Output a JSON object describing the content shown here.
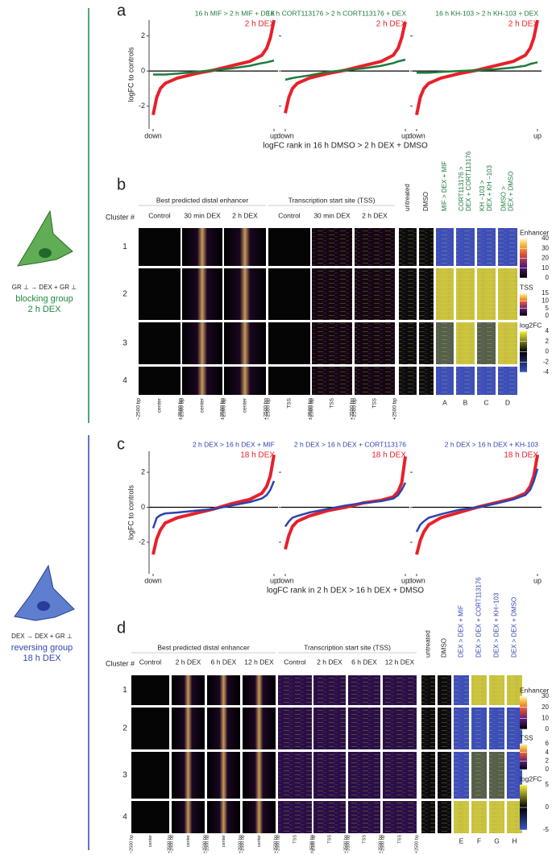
{
  "chart_data": [
    {
      "type": "line",
      "ylabel": "logFC to controls",
      "x": [
        0,
        3,
        6,
        10,
        20,
        35,
        50,
        65,
        80,
        90,
        94,
        97,
        100
      ],
      "xlim": [
        0,
        100
      ],
      "xticks": [
        {
          "value": 0,
          "label": "down"
        },
        {
          "value": 100,
          "label": "up"
        }
      ],
      "ylim": [
        -3.3,
        2.9
      ],
      "yticks": [
        -2,
        0,
        2
      ],
      "series": [
        {
          "name": "2 h DEX",
          "color": "#e8202a",
          "values": [
            -2.5,
            -1.5,
            -1.0,
            -0.7,
            -0.4,
            -0.15,
            0.05,
            0.3,
            0.55,
            0.9,
            1.3,
            1.9,
            2.9
          ]
        },
        {
          "name": "16 h MIF > 2 h MIF + DEX",
          "color": "#1e7a3c",
          "values": [
            -0.2,
            -0.2,
            -0.2,
            -0.2,
            -0.15,
            -0.05,
            0.05,
            0.15,
            0.3,
            0.45,
            0.5,
            0.55,
            0.6
          ]
        }
      ]
    },
    {
      "type": "line",
      "xlabel": "logFC rank in 16 h DMSO > 2 h DEX + DMSO",
      "x": [
        0,
        3,
        6,
        10,
        20,
        35,
        50,
        65,
        80,
        90,
        94,
        97,
        100
      ],
      "xlim": [
        0,
        100
      ],
      "xticks": [
        {
          "value": 0,
          "label": "down"
        },
        {
          "value": 100,
          "label": "up"
        }
      ],
      "ylim": [
        -3.3,
        2.9
      ],
      "yticks": [
        -2,
        0,
        2
      ],
      "series": [
        {
          "name": "2 h DEX",
          "color": "#e8202a",
          "values": [
            -2.4,
            -1.5,
            -1.0,
            -0.7,
            -0.4,
            -0.15,
            0.05,
            0.3,
            0.55,
            0.9,
            1.3,
            1.9,
            2.8
          ]
        },
        {
          "name": "16 h CORT113176 > 2 h CORT113176 + DEX",
          "color": "#1e7a3c",
          "values": [
            -0.5,
            -0.45,
            -0.4,
            -0.35,
            -0.25,
            -0.05,
            0.05,
            0.15,
            0.3,
            0.45,
            0.55,
            0.6,
            0.65
          ]
        }
      ]
    },
    {
      "type": "line",
      "x": [
        0,
        3,
        6,
        10,
        20,
        35,
        50,
        65,
        80,
        90,
        94,
        97,
        100
      ],
      "xlim": [
        0,
        100
      ],
      "xticks": [
        {
          "value": 0,
          "label": "down"
        },
        {
          "value": 100,
          "label": "up"
        }
      ],
      "ylim": [
        -3.3,
        2.9
      ],
      "yticks": [
        -2,
        0,
        2
      ],
      "series": [
        {
          "name": "2 h DEX",
          "color": "#e8202a",
          "values": [
            -2.5,
            -1.5,
            -1.0,
            -0.7,
            -0.4,
            -0.15,
            0.05,
            0.3,
            0.55,
            0.9,
            1.3,
            1.9,
            2.9
          ]
        },
        {
          "name": "16 h KH-103 > 2 h KH-103 + DEX",
          "color": "#1e7a3c",
          "values": [
            -0.1,
            -0.1,
            -0.1,
            -0.1,
            -0.05,
            0,
            0.05,
            0.1,
            0.2,
            0.3,
            0.4,
            0.45,
            0.5
          ]
        }
      ]
    },
    {
      "type": "line",
      "ylabel": "logFC to controls",
      "x": [
        0,
        3,
        6,
        10,
        20,
        35,
        50,
        65,
        80,
        90,
        94,
        97,
        100
      ],
      "xlim": [
        0,
        100
      ],
      "xticks": [
        {
          "value": 0,
          "label": "down"
        },
        {
          "value": 100,
          "label": "up"
        }
      ],
      "ylim": [
        -3.8,
        3.2
      ],
      "yticks": [
        -2,
        0,
        2
      ],
      "series": [
        {
          "name": "18 h DEX",
          "color": "#e8202a",
          "values": [
            -2.7,
            -1.8,
            -1.3,
            -0.9,
            -0.6,
            -0.35,
            -0.1,
            0.2,
            0.45,
            0.8,
            1.2,
            1.8,
            3.0
          ]
        },
        {
          "name": "2 h DEX > 16 h DEX + MIF",
          "color": "#2b44b0",
          "values": [
            -1.2,
            -0.6,
            -0.45,
            -0.35,
            -0.3,
            -0.2,
            -0.1,
            0.1,
            0.3,
            0.5,
            0.7,
            1.0,
            1.5
          ]
        }
      ]
    },
    {
      "type": "line",
      "xlabel": "logFC rank in 2 h DEX > 16 h DEX + DMSO",
      "x": [
        0,
        3,
        6,
        10,
        20,
        35,
        50,
        65,
        80,
        90,
        94,
        97,
        100
      ],
      "xlim": [
        0,
        100
      ],
      "xticks": [
        {
          "value": 0,
          "label": "down"
        },
        {
          "value": 100,
          "label": "up"
        }
      ],
      "ylim": [
        -3.8,
        3.2
      ],
      "yticks": [
        -2,
        0,
        2
      ],
      "series": [
        {
          "name": "18 h DEX",
          "color": "#e8202a",
          "values": [
            -2.4,
            -1.6,
            -1.1,
            -0.8,
            -0.5,
            -0.2,
            0,
            0.25,
            0.4,
            0.6,
            0.9,
            1.4,
            2.9
          ]
        },
        {
          "name": "2 h DEX > 16 h DEX + CORT113176",
          "color": "#2b44b0",
          "values": [
            -1.1,
            -0.8,
            -0.6,
            -0.5,
            -0.3,
            -0.1,
            0.1,
            0.25,
            0.35,
            0.5,
            0.7,
            1.0,
            1.4
          ]
        }
      ]
    },
    {
      "type": "line",
      "x": [
        0,
        3,
        6,
        10,
        20,
        35,
        50,
        65,
        80,
        90,
        94,
        97,
        100
      ],
      "xlim": [
        0,
        100
      ],
      "xticks": [
        {
          "value": 0,
          "label": "down"
        },
        {
          "value": 100,
          "label": "up"
        }
      ],
      "ylim": [
        -3.8,
        3.2
      ],
      "yticks": [
        -2,
        0,
        2
      ],
      "series": [
        {
          "name": "18 h DEX",
          "color": "#e8202a",
          "values": [
            -2.7,
            -1.9,
            -1.4,
            -1.0,
            -0.6,
            -0.3,
            0,
            0.25,
            0.5,
            0.8,
            1.2,
            1.8,
            3.0
          ]
        },
        {
          "name": "2 h DEX > 16 h DEX + KH-103",
          "color": "#2b44b0",
          "values": [
            -1.4,
            -1.0,
            -0.8,
            -0.6,
            -0.4,
            -0.15,
            0,
            0.2,
            0.45,
            0.7,
            1.0,
            1.5,
            2.2
          ]
        }
      ]
    }
  ],
  "figure": {
    "a": {
      "label": "a"
    },
    "c": {
      "label": "c"
    },
    "blocking": {
      "schema": "GR ⊥ → DEX + GR ⊥",
      "name": "blocking group",
      "time": "2 h DEX"
    },
    "reversing": {
      "schema": "DEX → DEX + GR ⊥",
      "name": "reversing group",
      "time": "18 h DEX"
    },
    "b": {
      "label": "b",
      "groups": [
        "Best predicted distal enhancer",
        "Transcription start site (TSS)"
      ],
      "columns": [
        "Control",
        "30 min DEX",
        "2 h DEX",
        "Control",
        "30 min DEX",
        "2 h DEX"
      ],
      "cluster_title": "Cluster #",
      "clusters": [
        "1",
        "2",
        "3",
        "4"
      ],
      "conditions": [
        [
          "untreated"
        ],
        [
          "DMSO"
        ],
        [
          "MIF  > DEX + MIF"
        ],
        [
          "CORT113176 >",
          "DEX + CORT113176"
        ],
        [
          "KH −103 >",
          "DEX + KH −103"
        ],
        [
          "DMSO >",
          "DEX + DMSO"
        ]
      ],
      "letters": [
        "A",
        "B",
        "C",
        "D"
      ],
      "x_labels": [
        [
          "−2500 bp",
          "center",
          "+2500 bp"
        ],
        [
          "−2500 bp",
          "center",
          "+2500 bp"
        ],
        [
          "−2500 bp",
          "center",
          "+2500 bp"
        ],
        [
          "−2500 bp",
          "TSS",
          "+2500 bp"
        ],
        [
          "−2500 bp",
          "TSS",
          "+2500 bp"
        ],
        [
          "−2500 bp",
          "TSS",
          "+2500 bp"
        ]
      ],
      "colorbars": [
        {
          "title": "Enhancer",
          "ticks": [
            0,
            10,
            20,
            30,
            40
          ]
        },
        {
          "title": "TSS",
          "ticks": [
            0,
            5,
            10,
            15
          ]
        },
        {
          "title": "log2FC",
          "ticks": [
            -4,
            -2,
            0,
            2,
            4
          ]
        }
      ]
    },
    "d": {
      "label": "d",
      "groups": [
        "Best predicted distal enhancer",
        "Transcription start site (TSS)"
      ],
      "columns": [
        "Control",
        "2 h DEX",
        "6 h DEX",
        "12 h DEX",
        "Control",
        "2 h DEX",
        "6 h DEX",
        "12 h DEX"
      ],
      "cluster_title": "Cluster #",
      "clusters": [
        "1",
        "2",
        "3",
        "4"
      ],
      "conditions": [
        [
          "untreated"
        ],
        [
          "DMSO"
        ],
        [
          "DEX > DEX + MIF"
        ],
        [
          "DEX > DEX + CORT113176"
        ],
        [
          "DEX > DEX + KH−103"
        ],
        [
          "DEX > DEX + DMSO"
        ]
      ],
      "letters": [
        "E",
        "F",
        "G",
        "H"
      ],
      "x_labels": [
        [
          "−2500 bp",
          "center",
          "+2500 bp"
        ],
        [
          "−2500 bp",
          "center",
          "+2500 bp"
        ],
        [
          "−2500 bp",
          "center",
          "+2500 bp"
        ],
        [
          "−2500 bp",
          "center",
          "+2500 bp"
        ],
        [
          "−2500 bp",
          "TSS",
          "+2500 bp"
        ],
        [
          "−2500 bp",
          "TSS",
          "+2500 bp"
        ],
        [
          "−2500 bp",
          "TSS",
          "+2500 bp"
        ],
        [
          "−2500 bp",
          "TSS",
          "+2500 bp"
        ]
      ],
      "colorbars": [
        {
          "title": "Enhancer",
          "ticks": [
            0,
            10,
            20,
            30
          ]
        },
        {
          "title": "TSS",
          "ticks": [
            0,
            2,
            4,
            6
          ]
        },
        {
          "title": "log2FC",
          "ticks": [
            -5,
            0,
            5
          ]
        }
      ]
    }
  }
}
